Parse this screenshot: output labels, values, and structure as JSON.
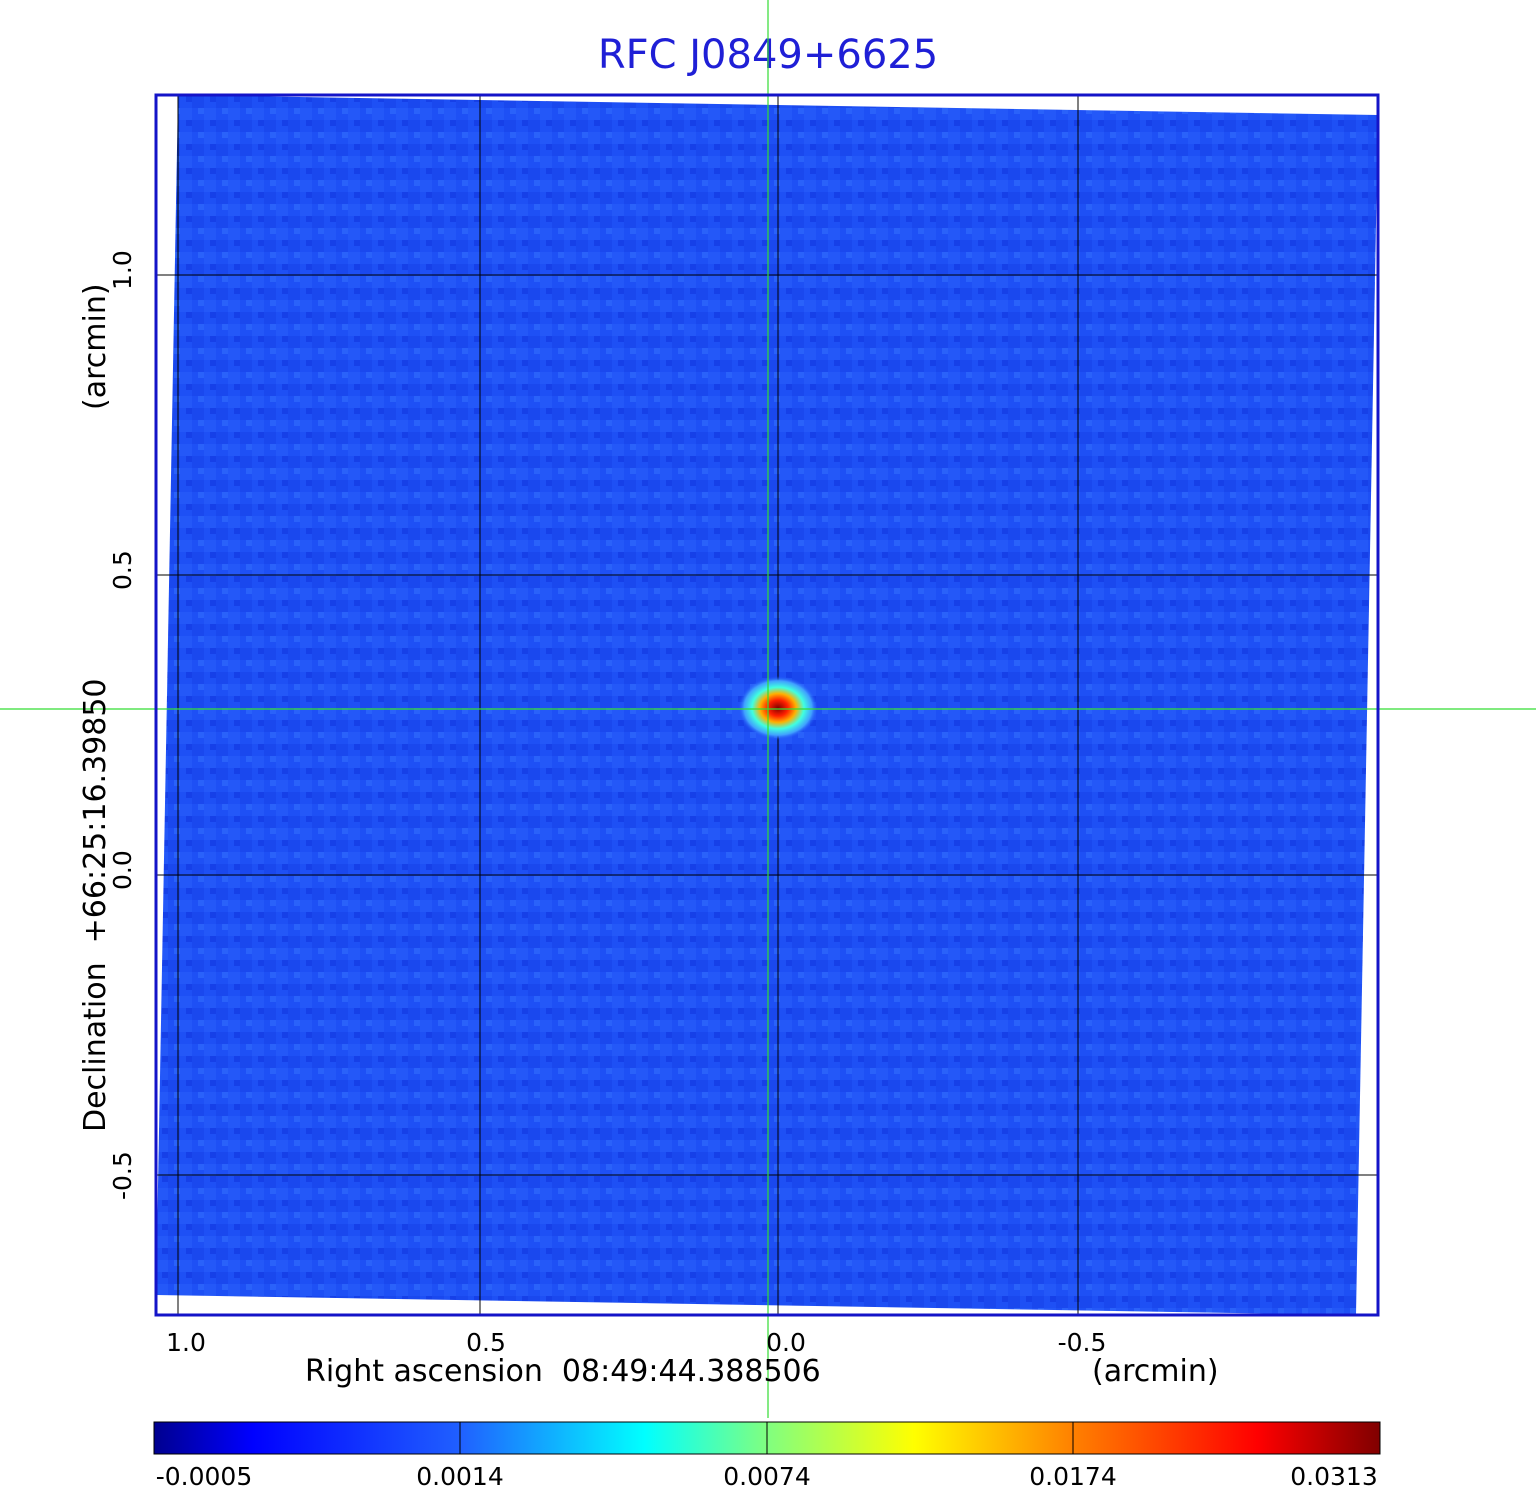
{
  "title": "RFC J0849+6625",
  "axes": {
    "x_label": "Right ascension  08:49:44.388506",
    "x_unit": "(arcmin)",
    "y_label": "Declination  +66:25:16.39850",
    "y_unit": "(arcmin)",
    "x_ticks": [
      "1.0",
      "0.5",
      "0.0",
      "-0.5"
    ],
    "y_ticks": [
      "1.0",
      "0.5",
      "0.0",
      "-0.5"
    ]
  },
  "colorbar": {
    "ticks": [
      "-0.0005",
      "0.0014",
      "0.0074",
      "0.0174",
      "0.0313"
    ],
    "colors": [
      "#00008f",
      "#0000ff",
      "#0080ff",
      "#00ffff",
      "#80ff80",
      "#ffff00",
      "#ff8000",
      "#ff0000",
      "#800000"
    ]
  },
  "colors": {
    "frame": "#1414c8",
    "background_map": "#1e50f5",
    "crosshair": "#33dd33",
    "title": "#1f1fd6"
  },
  "source": {
    "description_ra_offset_arcmin": 0.0,
    "description_dec_offset_arcmin": 0.27
  }
}
